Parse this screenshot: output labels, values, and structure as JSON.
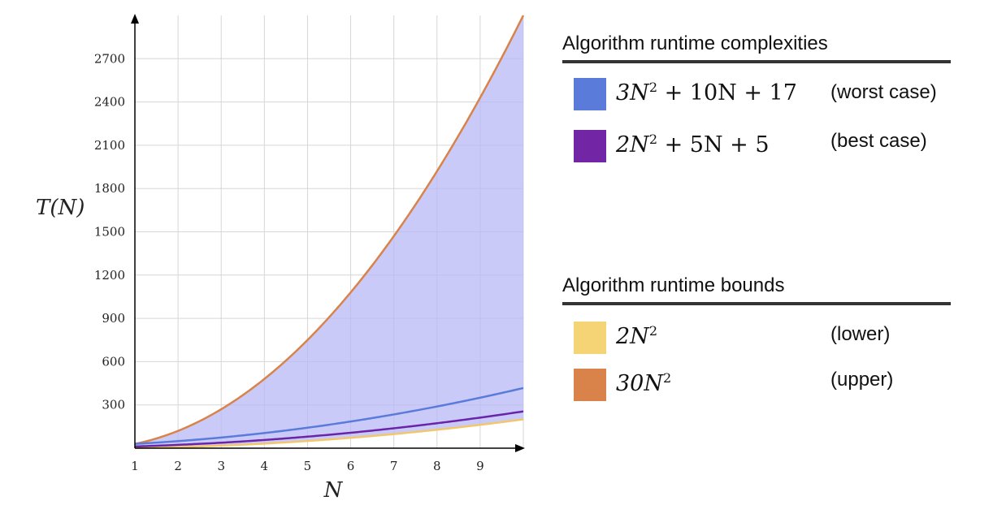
{
  "chart_data": {
    "type": "line",
    "xlabel": "N",
    "ylabel": "T(N)",
    "x_range": [
      1,
      10
    ],
    "xticks": [
      "1",
      "2",
      "3",
      "4",
      "5",
      "6",
      "7",
      "8",
      "9"
    ],
    "ylim": [
      0,
      3000
    ],
    "yticks": [
      "300",
      "600",
      "900",
      "1200",
      "1500",
      "1800",
      "2100",
      "2400",
      "2700"
    ],
    "grid": true,
    "x": [
      1,
      2,
      3,
      4,
      5,
      6,
      7,
      8,
      9,
      10
    ],
    "series": [
      {
        "name": "3N^2 + 10N + 17",
        "color": "#5b7bdb",
        "values": [
          30,
          49,
          74,
          105,
          142,
          185,
          234,
          289,
          350,
          417
        ]
      },
      {
        "name": "2N^2 + 5N + 5",
        "color": "#6a24a8",
        "values": [
          12,
          23,
          38,
          57,
          80,
          107,
          138,
          173,
          212,
          255
        ]
      },
      {
        "name": "2N^2",
        "color": "#f2c76b",
        "values": [
          2,
          8,
          18,
          32,
          50,
          72,
          98,
          128,
          162,
          200
        ]
      },
      {
        "name": "30N^2",
        "color": "#d9834a",
        "values": [
          30,
          120,
          270,
          480,
          750,
          1080,
          1470,
          1920,
          2430,
          3000
        ]
      }
    ],
    "shaded_region": {
      "between": [
        "2N^2",
        "30N^2"
      ],
      "color": "#b8b8f5"
    },
    "legend_placement": "right"
  },
  "legend": {
    "complexities": {
      "heading": "Algorithm runtime complexities",
      "items": [
        {
          "name_parts": [
            "3N",
            "2",
            " + 10N + 17"
          ],
          "note": "(worst case)",
          "color": "#5b7bdb"
        },
        {
          "name_parts": [
            "2N",
            "2",
            " + 5N + 5"
          ],
          "note": "(best case)",
          "color": "#7226a6"
        }
      ]
    },
    "bounds": {
      "heading": "Algorithm runtime bounds",
      "items": [
        {
          "name_parts": [
            "2N",
            "2",
            ""
          ],
          "note": "(lower)",
          "color": "#f5d476"
        },
        {
          "name_parts": [
            "30N",
            "2",
            ""
          ],
          "note": "(upper)",
          "color": "#d9834a"
        }
      ]
    }
  }
}
